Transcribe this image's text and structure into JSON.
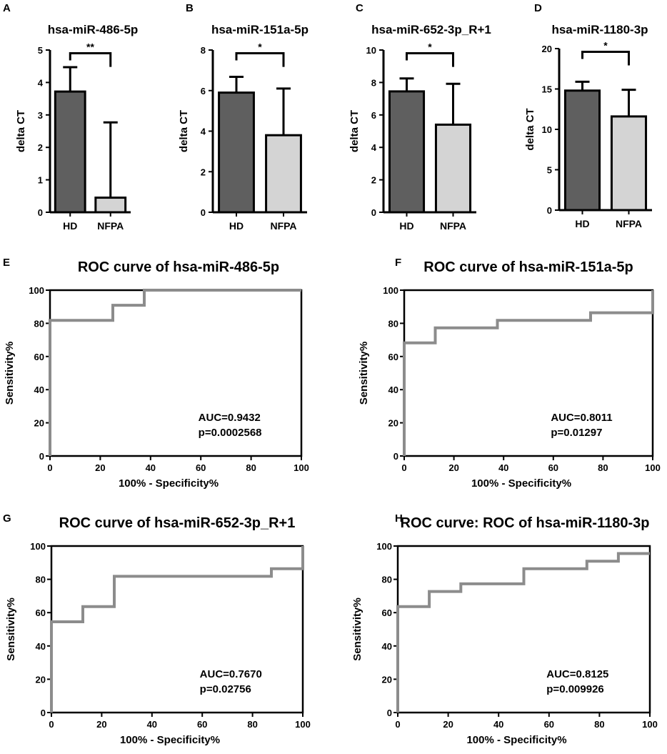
{
  "chart_data": [
    {
      "panel": "A",
      "type": "bar",
      "title": "hsa-miR-486-5p",
      "ylabel": "delta CT",
      "ylim": [
        0,
        5
      ],
      "yticks": [
        0,
        1,
        2,
        3,
        4,
        5
      ],
      "categories": [
        "HD",
        "NFPA"
      ],
      "values": [
        3.72,
        0.45
      ],
      "errors": [
        0.75,
        2.32
      ],
      "colors": [
        "#5f5f5f",
        "#d4d4d4"
      ],
      "significance": "**"
    },
    {
      "panel": "B",
      "type": "bar",
      "title": "hsa-miR-151a-5p",
      "ylabel": "delta CT",
      "ylim": [
        0,
        8
      ],
      "yticks": [
        0,
        2,
        4,
        6,
        8
      ],
      "categories": [
        "HD",
        "NFPA"
      ],
      "values": [
        5.9,
        3.8
      ],
      "errors": [
        0.78,
        2.3
      ],
      "colors": [
        "#5f5f5f",
        "#d4d4d4"
      ],
      "significance": "*"
    },
    {
      "panel": "C",
      "type": "bar",
      "title": "hsa-miR-652-3p_R+1",
      "ylabel": "delta CT",
      "ylim": [
        0,
        10
      ],
      "yticks": [
        0,
        2,
        4,
        6,
        8,
        10
      ],
      "categories": [
        "HD",
        "NFPA"
      ],
      "values": [
        7.45,
        5.4
      ],
      "errors": [
        0.8,
        2.52
      ],
      "colors": [
        "#5f5f5f",
        "#d4d4d4"
      ],
      "significance": "*"
    },
    {
      "panel": "D",
      "type": "bar",
      "title": "hsa-miR-1180-3p",
      "ylabel": "delta CT",
      "ylim": [
        0,
        20
      ],
      "yticks": [
        0,
        5,
        10,
        15,
        20
      ],
      "categories": [
        "HD",
        "NFPA"
      ],
      "values": [
        14.8,
        11.6
      ],
      "errors": [
        1.1,
        3.3
      ],
      "colors": [
        "#5f5f5f",
        "#d4d4d4"
      ],
      "significance": "*"
    },
    {
      "panel": "E",
      "type": "line",
      "title": "ROC curve of hsa-miR-486-5p",
      "xlabel": "100% - Specificity%",
      "ylabel": "Sensitivity%",
      "xlim": [
        0,
        100
      ],
      "ylim": [
        0,
        100
      ],
      "xticks": [
        0,
        20,
        40,
        60,
        80,
        100
      ],
      "yticks": [
        0,
        20,
        40,
        60,
        80,
        100
      ],
      "x": [
        0,
        0,
        25,
        25,
        37.5,
        37.5,
        100
      ],
      "y": [
        0,
        81.8,
        81.8,
        90.9,
        90.9,
        100,
        100
      ],
      "auc": "AUC=0.9432",
      "p": "p=0.0002568",
      "color": "#8c8c8c"
    },
    {
      "panel": "F",
      "type": "line",
      "title": "ROC curve of hsa-miR-151a-5p",
      "xlabel": "100% - Specificity%",
      "ylabel": "Sensitivity%",
      "xlim": [
        0,
        100
      ],
      "ylim": [
        0,
        100
      ],
      "xticks": [
        0,
        20,
        40,
        60,
        80,
        100
      ],
      "yticks": [
        0,
        20,
        40,
        60,
        80,
        100
      ],
      "x": [
        0,
        0,
        12.5,
        12.5,
        37.5,
        37.5,
        75,
        75,
        100,
        100
      ],
      "y": [
        0,
        68.2,
        68.2,
        77.3,
        77.3,
        81.8,
        81.8,
        86.4,
        86.4,
        100
      ],
      "auc": "AUC=0.8011",
      "p": "p=0.01297",
      "color": "#8c8c8c"
    },
    {
      "panel": "G",
      "type": "line",
      "title": "ROC curve of hsa-miR-652-3p_R+1",
      "xlabel": "100% - Specificity%",
      "ylabel": "Sensitivity%",
      "xlim": [
        0,
        100
      ],
      "ylim": [
        0,
        100
      ],
      "xticks": [
        0,
        20,
        40,
        60,
        80,
        100
      ],
      "yticks": [
        0,
        20,
        40,
        60,
        80,
        100
      ],
      "x": [
        0,
        0,
        12.5,
        12.5,
        25,
        25,
        87.5,
        87.5,
        100,
        100
      ],
      "y": [
        0,
        54.5,
        54.5,
        63.6,
        63.6,
        81.8,
        81.8,
        86.4,
        86.4,
        100
      ],
      "auc": "AUC=0.7670",
      "p": "p=0.02756",
      "color": "#8c8c8c"
    },
    {
      "panel": "H",
      "type": "line",
      "title": "ROC curve: ROC of hsa-miR-1180-3p",
      "xlabel": "100% - Specificity%",
      "ylabel": "Sensitivity%",
      "xlim": [
        0,
        100
      ],
      "ylim": [
        0,
        100
      ],
      "xticks": [
        0,
        20,
        40,
        60,
        80,
        100
      ],
      "yticks": [
        0,
        20,
        40,
        60,
        80,
        100
      ],
      "x": [
        0,
        0,
        12.5,
        12.5,
        25,
        25,
        50,
        50,
        75,
        75,
        87.5,
        87.5,
        100
      ],
      "y": [
        0,
        63.6,
        63.6,
        72.7,
        72.7,
        77.3,
        77.3,
        86.4,
        86.4,
        90.9,
        90.9,
        95.5,
        95.5
      ],
      "auc": "AUC=0.8125",
      "p": "p=0.009926",
      "color": "#8c8c8c"
    }
  ]
}
